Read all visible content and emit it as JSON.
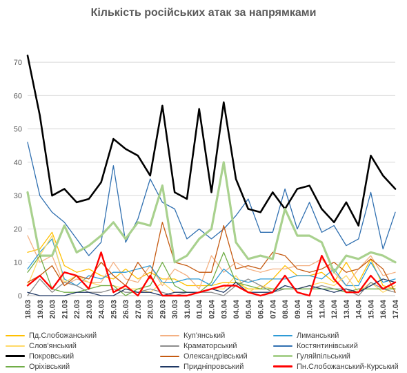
{
  "chart_data": {
    "type": "line",
    "title": "Кількість російських атак за напрямками",
    "xlabel": "",
    "ylabel": "",
    "ylim": [
      0,
      75
    ],
    "yticks": [
      0,
      10,
      20,
      30,
      40,
      50,
      60,
      70
    ],
    "grid": "horizontal",
    "legend_position": "bottom",
    "categories": [
      "18.03",
      "19.03",
      "20.03",
      "21.03",
      "22.03",
      "23.03",
      "24.03",
      "25.03",
      "26.03",
      "27.03",
      "28.03",
      "29.03",
      "30.03",
      "31.03",
      "01.04",
      "02.04",
      "03.04",
      "04.04",
      "05.04",
      "06.04",
      "07.04",
      "08.04",
      "09.04",
      "10.04",
      "11.04",
      "12.04",
      "13.04",
      "14.04",
      "15.04",
      "16.04",
      "17.04"
    ],
    "series": [
      {
        "name": "Пд.Слобожанський",
        "color": "#ffc000",
        "width": 1.3,
        "values": [
          13,
          14,
          19,
          9,
          7,
          8,
          6,
          5,
          8,
          5,
          7,
          5,
          5,
          3,
          3,
          3,
          4,
          4,
          2,
          2,
          5,
          9,
          6,
          6,
          7,
          4,
          10,
          4,
          11,
          3,
          2
        ]
      },
      {
        "name": "Куп'янський",
        "color": "#f4b183",
        "width": 1.3,
        "values": [
          18,
          10,
          12,
          3,
          5,
          4,
          4,
          10,
          5,
          4,
          9,
          3,
          8,
          6,
          2,
          12,
          7,
          10,
          8,
          7,
          8,
          8,
          9,
          9,
          11,
          7,
          3,
          8,
          12,
          6,
          7
        ]
      },
      {
        "name": "Лиманський",
        "color": "#2e9bd6",
        "width": 1.3,
        "values": [
          8,
          13,
          17,
          5,
          3,
          6,
          5,
          7,
          7,
          8,
          9,
          4,
          4,
          5,
          5,
          3,
          8,
          5,
          4,
          5,
          5,
          5,
          6,
          6,
          5,
          8,
          3,
          3,
          10,
          4,
          5
        ]
      },
      {
        "name": "Слов'янський",
        "color": "#ffd966",
        "width": 1.3,
        "values": [
          3,
          12,
          18,
          4,
          6,
          4,
          3,
          3,
          2,
          2,
          1,
          4,
          1,
          1,
          1,
          2,
          2,
          6,
          1,
          3,
          2,
          2,
          2,
          3,
          4,
          3,
          6,
          1,
          4,
          1,
          3
        ]
      },
      {
        "name": "Краматорський",
        "color": "#8c8c8c",
        "width": 1.3,
        "values": [
          0,
          5,
          1,
          4,
          3,
          1,
          1,
          2,
          1,
          1,
          2,
          1,
          0,
          1,
          1,
          1,
          0,
          3,
          5,
          3,
          1,
          2,
          2,
          2,
          3,
          2,
          2,
          0,
          4,
          2,
          1
        ]
      },
      {
        "name": "Костянтинівський",
        "color": "#2f6fb0",
        "width": 1.3,
        "values": [
          46,
          30,
          25,
          22,
          17,
          12,
          16,
          39,
          16,
          23,
          35,
          28,
          26,
          17,
          20,
          17,
          20,
          24,
          29,
          19,
          19,
          32,
          20,
          28,
          19,
          21,
          15,
          17,
          31,
          14,
          25
        ]
      },
      {
        "name": "Покровський",
        "color": "#000000",
        "width": 2.6,
        "values": [
          72,
          54,
          30,
          32,
          28,
          29,
          34,
          47,
          44,
          42,
          36,
          57,
          31,
          29,
          56,
          31,
          58,
          35,
          26,
          25,
          31,
          26,
          32,
          33,
          26,
          22,
          28,
          21,
          42,
          36,
          32
        ]
      },
      {
        "name": "Олександрівський",
        "color": "#c55a11",
        "width": 1.3,
        "values": [
          4,
          6,
          9,
          3,
          6,
          5,
          10,
          6,
          3,
          10,
          5,
          22,
          10,
          9,
          7,
          7,
          21,
          8,
          9,
          8,
          13,
          12,
          8,
          7,
          8,
          10,
          7,
          8,
          11,
          8,
          1
        ]
      },
      {
        "name": "Гуляйпільський",
        "color": "#a9d18e",
        "width": 3.2,
        "values": [
          31,
          12,
          12,
          21,
          13,
          15,
          18,
          22,
          17,
          22,
          21,
          33,
          10,
          12,
          17,
          20,
          40,
          16,
          11,
          12,
          11,
          26,
          18,
          18,
          16,
          7,
          12,
          11,
          13,
          12,
          10
        ]
      },
      {
        "name": "Оріхівський",
        "color": "#70ad47",
        "width": 1.3,
        "values": [
          7,
          12,
          2,
          1,
          1,
          2,
          3,
          3,
          0,
          2,
          3,
          10,
          3,
          1,
          1,
          4,
          13,
          4,
          3,
          2,
          2,
          2,
          2,
          2,
          2,
          2,
          1,
          2,
          2,
          2,
          2
        ]
      },
      {
        "name": "Придніпровський",
        "color": "#1f3864",
        "width": 1.3,
        "values": [
          1,
          0,
          0,
          0,
          1,
          1,
          0,
          0,
          2,
          1,
          1,
          0,
          1,
          1,
          1,
          2,
          1,
          4,
          1,
          1,
          1,
          3,
          2,
          3,
          2,
          1,
          2,
          1,
          3,
          5,
          4
        ]
      },
      {
        "name": "Пн.Слобожанський-Курський",
        "color": "#ff0000",
        "width": 2.4,
        "values": [
          3,
          6,
          2,
          7,
          6,
          2,
          13,
          1,
          3,
          0,
          6,
          0,
          0,
          0,
          1,
          2,
          3,
          3,
          1,
          0,
          1,
          6,
          1,
          0,
          12,
          5,
          1,
          1,
          6,
          2,
          4
        ]
      }
    ]
  }
}
